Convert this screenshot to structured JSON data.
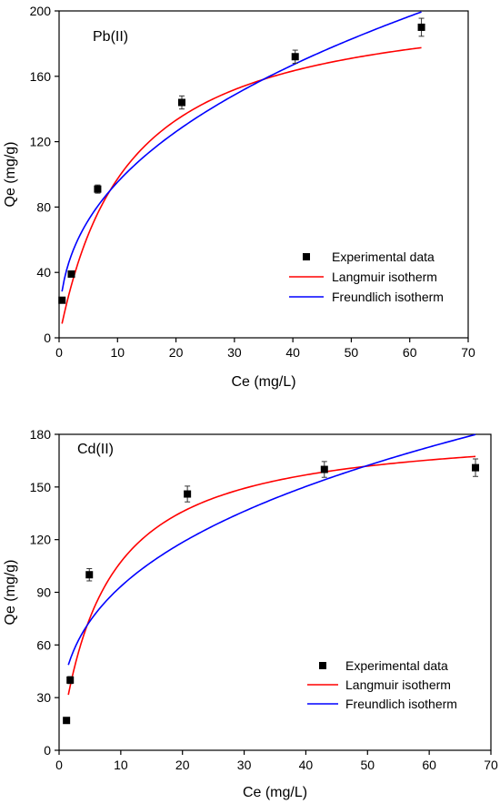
{
  "chart_data": [
    {
      "type": "scatter",
      "title": "",
      "panel_label": "Pb(II)",
      "xlabel": "Ce (mg/L)",
      "ylabel": "Qe (mg/g)",
      "xlim": [
        0,
        70
      ],
      "ylim": [
        0,
        200
      ],
      "xticks": [
        0,
        10,
        20,
        30,
        40,
        50,
        60,
        70
      ],
      "yticks": [
        0,
        40,
        80,
        120,
        160,
        200
      ],
      "grid": false,
      "legend_position": "lower-right",
      "series": [
        {
          "name": "Experimental data",
          "kind": "scatter",
          "color": "#000000",
          "x": [
            0.5,
            2.1,
            6.6,
            21.0,
            40.4,
            62.0
          ],
          "y": [
            23,
            39,
            91,
            144,
            172,
            190
          ],
          "err": [
            0,
            0,
            2.5,
            4,
            4,
            5.5
          ]
        },
        {
          "name": "Langmuir isotherm",
          "kind": "line",
          "color": "#ff0000",
          "model": "langmuir",
          "qmax": 211,
          "k": 0.0855,
          "x_range": [
            0.5,
            62
          ]
        },
        {
          "name": "Freundlich isotherm",
          "kind": "line",
          "color": "#0000ff",
          "model": "freundlich",
          "k": 37.5,
          "n": 2.47,
          "x_range": [
            0.5,
            62
          ]
        }
      ]
    },
    {
      "type": "scatter",
      "title": "",
      "panel_label": "Cd(II)",
      "xlabel": "Ce (mg/L)",
      "ylabel": "Qe (mg/g)",
      "xlim": [
        0,
        70
      ],
      "ylim": [
        0,
        180
      ],
      "xticks": [
        0,
        10,
        20,
        30,
        40,
        50,
        60,
        70
      ],
      "yticks": [
        0,
        30,
        60,
        90,
        120,
        150,
        180
      ],
      "grid": false,
      "legend_position": "lower-right",
      "series": [
        {
          "name": "Experimental data",
          "kind": "scatter",
          "color": "#000000",
          "x": [
            1.2,
            1.8,
            4.9,
            20.8,
            43.0,
            67.5
          ],
          "y": [
            17,
            40,
            100,
            146,
            160,
            161
          ],
          "err": [
            0,
            2,
            3.5,
            4.5,
            4.5,
            5
          ]
        },
        {
          "name": "Langmuir isotherm",
          "kind": "line",
          "color": "#ff0000",
          "model": "langmuir",
          "qmax": 185.5,
          "k": 0.137,
          "x_range": [
            1.5,
            67.5
          ]
        },
        {
          "name": "Freundlich isotherm",
          "kind": "line",
          "color": "#0000ff",
          "model": "freundlich",
          "k": 42.3,
          "n": 2.91,
          "x_range": [
            1.5,
            67.5
          ]
        }
      ]
    }
  ]
}
